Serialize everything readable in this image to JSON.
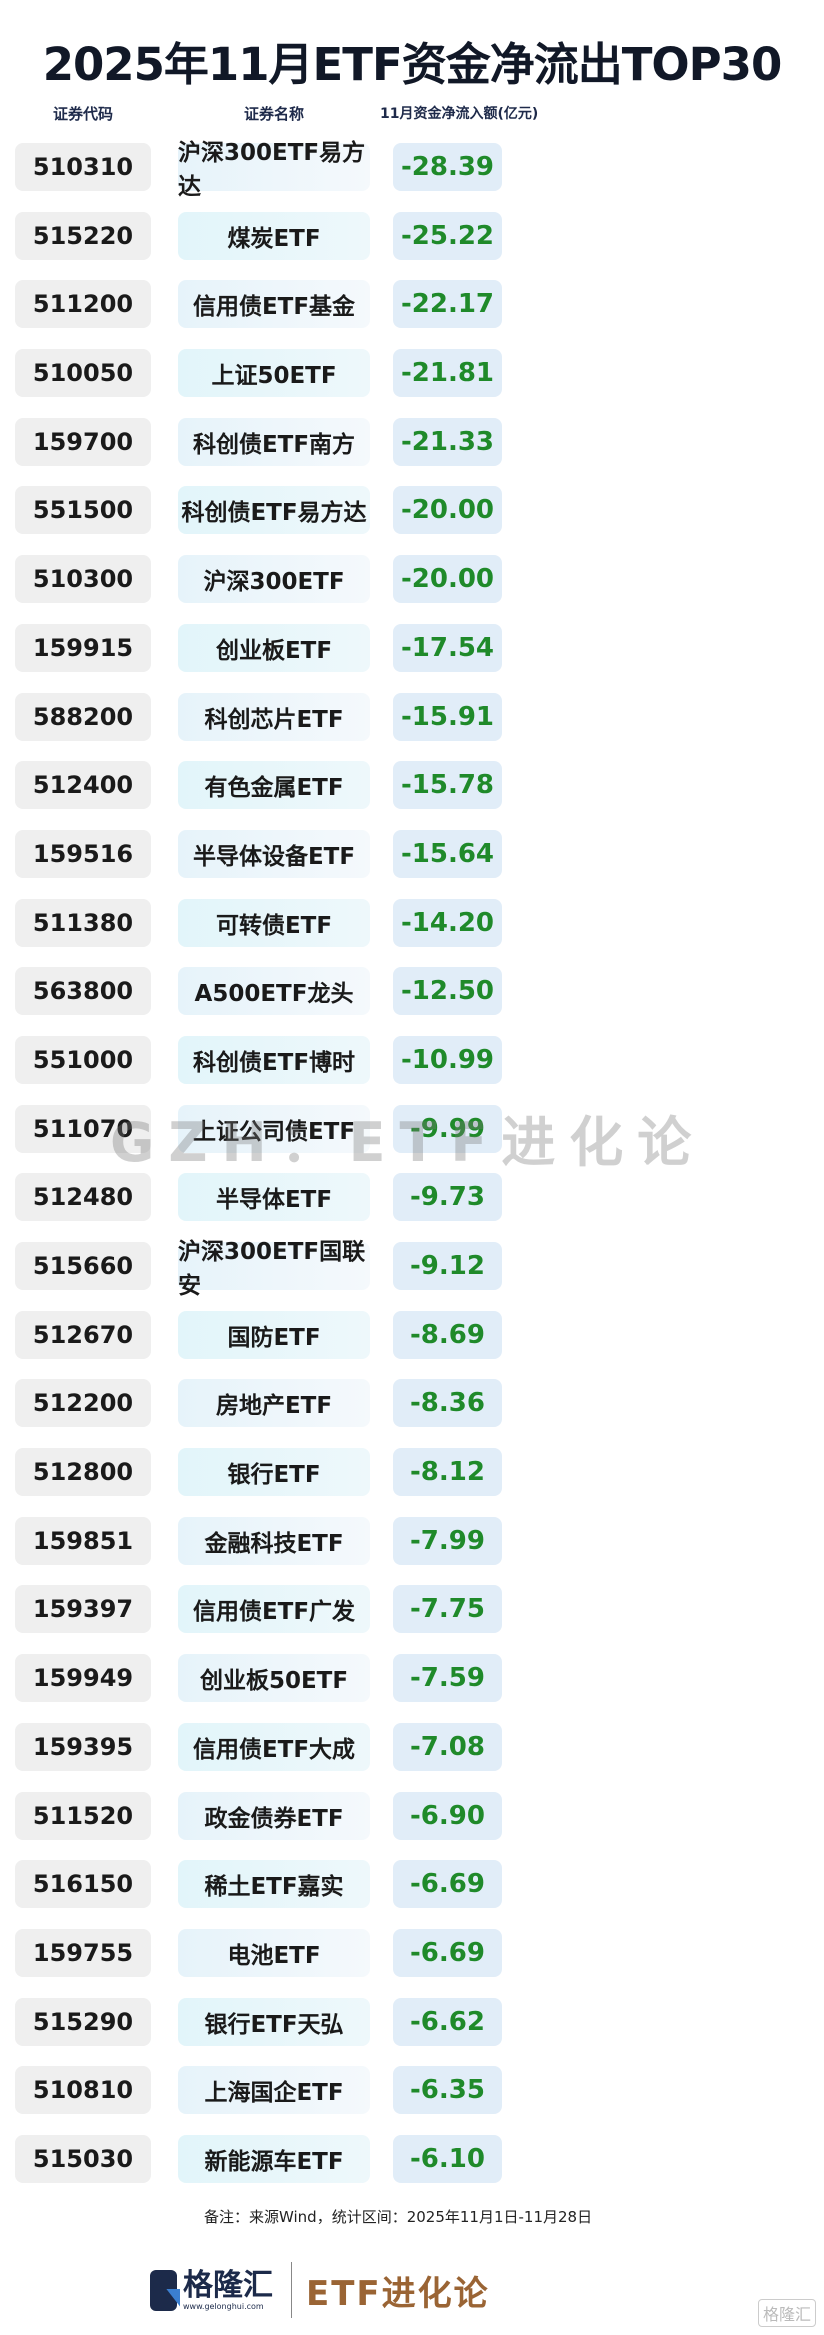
{
  "title": "2025年11月ETF资金净流出TOP30",
  "headers": {
    "code": "证券代码",
    "name": "证券名称",
    "flow": "11月资金净流入额(亿元)"
  },
  "rows": [
    {
      "code": "510310",
      "name": "沪深300ETF易方达",
      "value": "-28.39"
    },
    {
      "code": "515220",
      "name": "煤炭ETF",
      "value": "-25.22"
    },
    {
      "code": "511200",
      "name": "信用债ETF基金",
      "value": "-22.17"
    },
    {
      "code": "510050",
      "name": "上证50ETF",
      "value": "-21.81"
    },
    {
      "code": "159700",
      "name": "科创债ETF南方",
      "value": "-21.33"
    },
    {
      "code": "551500",
      "name": "科创债ETF易方达",
      "value": "-20.00"
    },
    {
      "code": "510300",
      "name": "沪深300ETF",
      "value": "-20.00"
    },
    {
      "code": "159915",
      "name": "创业板ETF",
      "value": "-17.54"
    },
    {
      "code": "588200",
      "name": "科创芯片ETF",
      "value": "-15.91"
    },
    {
      "code": "512400",
      "name": "有色金属ETF",
      "value": "-15.78"
    },
    {
      "code": "159516",
      "name": "半导体设备ETF",
      "value": "-15.64"
    },
    {
      "code": "511380",
      "name": "可转债ETF",
      "value": "-14.20"
    },
    {
      "code": "563800",
      "name": "A500ETF龙头",
      "value": "-12.50"
    },
    {
      "code": "551000",
      "name": "科创债ETF博时",
      "value": "-10.99"
    },
    {
      "code": "511070",
      "name": "上证公司债ETF",
      "value": "-9.99"
    },
    {
      "code": "512480",
      "name": "半导体ETF",
      "value": "-9.73"
    },
    {
      "code": "515660",
      "name": "沪深300ETF国联安",
      "value": "-9.12"
    },
    {
      "code": "512670",
      "name": "国防ETF",
      "value": "-8.69"
    },
    {
      "code": "512200",
      "name": "房地产ETF",
      "value": "-8.36"
    },
    {
      "code": "512800",
      "name": "银行ETF",
      "value": "-8.12"
    },
    {
      "code": "159851",
      "name": "金融科技ETF",
      "value": "-7.99"
    },
    {
      "code": "159397",
      "name": "信用债ETF广发",
      "value": "-7.75"
    },
    {
      "code": "159949",
      "name": "创业板50ETF",
      "value": "-7.59"
    },
    {
      "code": "159395",
      "name": "信用债ETF大成",
      "value": "-7.08"
    },
    {
      "code": "511520",
      "name": "政金债券ETF",
      "value": "-6.90"
    },
    {
      "code": "516150",
      "name": "稀土ETF嘉实",
      "value": "-6.69"
    },
    {
      "code": "159755",
      "name": "电池ETF",
      "value": "-6.69"
    },
    {
      "code": "515290",
      "name": "银行ETF天弘",
      "value": "-6.62"
    },
    {
      "code": "510810",
      "name": "上海国企ETF",
      "value": "-6.35"
    },
    {
      "code": "515030",
      "name": "新能源车ETF",
      "value": "-6.10"
    }
  ],
  "watermark": "GZH：ETF进化论",
  "note": "备注：来源Wind，统计区间：2025年11月1日-11月28日",
  "footer": {
    "brand": "格隆汇",
    "brand_url": "www.gelonghui.com",
    "column": "ETF进化论",
    "corner_mark": "格隆汇"
  },
  "colors": {
    "value_text": "#1f8a2a",
    "value_bg": "#e1edf8",
    "code_bg": "#efefef",
    "brand_brown": "#9a6434"
  }
}
